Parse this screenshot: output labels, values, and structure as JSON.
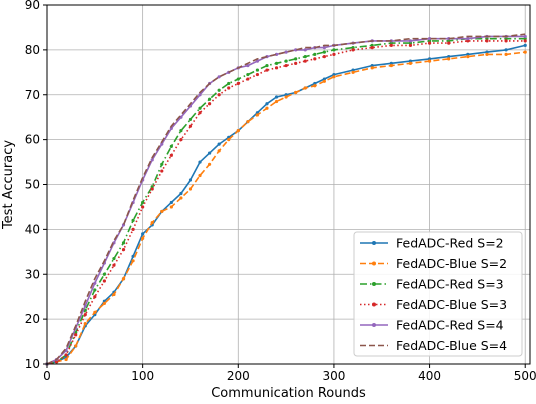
{
  "chart_data": {
    "type": "line",
    "title": "",
    "xlabel": "Communication Rounds",
    "ylabel": "Test Accuracy",
    "xlim": [
      0,
      505
    ],
    "ylim": [
      10,
      90
    ],
    "xticks": [
      0,
      100,
      200,
      300,
      400,
      500
    ],
    "yticks": [
      10,
      20,
      30,
      40,
      50,
      60,
      70,
      80,
      90
    ],
    "grid": true,
    "legend_position": "lower-right",
    "series": [
      {
        "name": "FedADC-Red S=2",
        "color": "#1f77b4",
        "linestyle": "solid",
        "marker": "dot",
        "x": [
          0,
          10,
          20,
          30,
          40,
          50,
          60,
          70,
          80,
          90,
          100,
          110,
          120,
          130,
          140,
          150,
          160,
          170,
          180,
          190,
          200,
          210,
          220,
          230,
          240,
          250,
          260,
          270,
          280,
          290,
          300,
          320,
          340,
          360,
          380,
          400,
          420,
          440,
          460,
          480,
          500
        ],
        "y": [
          10,
          10.5,
          11.5,
          14,
          18.5,
          21,
          24,
          26,
          29,
          34,
          39,
          41,
          44,
          46,
          48,
          51,
          55,
          57,
          59,
          60.5,
          62,
          64,
          66,
          68,
          69.5,
          70,
          70.5,
          71.5,
          72.5,
          73.5,
          74.5,
          75.5,
          76.5,
          77,
          77.5,
          78,
          78.5,
          79,
          79.5,
          80,
          81
        ]
      },
      {
        "name": "FedADC-Blue S=2",
        "color": "#ff7f0e",
        "linestyle": "dashed",
        "marker": "dot",
        "x": [
          0,
          10,
          20,
          30,
          40,
          50,
          60,
          70,
          80,
          90,
          100,
          110,
          120,
          130,
          140,
          150,
          160,
          170,
          180,
          190,
          200,
          210,
          220,
          230,
          240,
          250,
          260,
          270,
          280,
          290,
          300,
          320,
          340,
          360,
          380,
          400,
          420,
          440,
          460,
          480,
          500
        ],
        "y": [
          10,
          10.5,
          11,
          14,
          19,
          21.5,
          23.5,
          25.5,
          29,
          33,
          38,
          41.5,
          44,
          45,
          47,
          49,
          52,
          54.5,
          57.5,
          60,
          62,
          64,
          65.5,
          67,
          68.5,
          69.5,
          70.5,
          71.5,
          72,
          73,
          74,
          75,
          76,
          76.5,
          77,
          77.5,
          78,
          78.5,
          79,
          79,
          79.5
        ]
      },
      {
        "name": "FedADC-Red S=3",
        "color": "#2ca02c",
        "linestyle": "dashdot",
        "marker": "dot",
        "x": [
          0,
          10,
          20,
          30,
          40,
          50,
          60,
          70,
          80,
          90,
          100,
          110,
          120,
          130,
          140,
          150,
          160,
          170,
          180,
          190,
          200,
          210,
          220,
          230,
          240,
          250,
          260,
          270,
          280,
          290,
          300,
          320,
          340,
          360,
          380,
          400,
          420,
          440,
          460,
          480,
          500
        ],
        "y": [
          10,
          10.5,
          12,
          17,
          22,
          26.5,
          30,
          33.5,
          37,
          42,
          46,
          49.5,
          54.5,
          58.5,
          62,
          64.5,
          67,
          69,
          71,
          72.5,
          73.5,
          74.5,
          75.5,
          76.5,
          77,
          77.5,
          78,
          78.5,
          79,
          79.5,
          80,
          80.5,
          81,
          81.5,
          81.5,
          82,
          82,
          82.5,
          82.5,
          82.5,
          82.5
        ]
      },
      {
        "name": "FedADC-Blue S=3",
        "color": "#d62728",
        "linestyle": "dotted",
        "marker": "dot",
        "x": [
          0,
          10,
          20,
          30,
          40,
          50,
          60,
          70,
          80,
          90,
          100,
          110,
          120,
          130,
          140,
          150,
          160,
          170,
          180,
          190,
          200,
          210,
          220,
          230,
          240,
          250,
          260,
          270,
          280,
          290,
          300,
          320,
          340,
          360,
          380,
          400,
          420,
          440,
          460,
          480,
          500
        ],
        "y": [
          10,
          10.5,
          12,
          16.5,
          21,
          25,
          28.5,
          32,
          35.5,
          40,
          45,
          49,
          53,
          56.5,
          60,
          63,
          66,
          68,
          70,
          71.5,
          72.5,
          73.5,
          74.5,
          75.5,
          76,
          76.5,
          77,
          77.5,
          78,
          78.5,
          79,
          80,
          80.5,
          81,
          81,
          81.5,
          81.5,
          82,
          82,
          82,
          82
        ]
      },
      {
        "name": "FedADC-Red S=4",
        "color": "#9467bd",
        "linestyle": "solid",
        "marker": "dot",
        "x": [
          0,
          10,
          20,
          30,
          40,
          50,
          60,
          70,
          80,
          90,
          100,
          110,
          120,
          130,
          140,
          150,
          160,
          170,
          180,
          190,
          200,
          210,
          220,
          230,
          240,
          250,
          260,
          270,
          280,
          290,
          300,
          320,
          340,
          360,
          380,
          400,
          420,
          440,
          460,
          480,
          500
        ],
        "y": [
          10,
          11,
          13,
          18,
          23,
          28,
          32.5,
          37,
          41,
          46,
          51,
          55.5,
          59,
          62.5,
          65,
          67.5,
          70,
          72.5,
          74,
          75,
          76,
          76.5,
          77.5,
          78.5,
          79,
          79.5,
          80,
          80,
          80.5,
          80.5,
          81,
          81.5,
          82,
          82,
          82,
          82.5,
          82.5,
          82.5,
          83,
          83,
          83
        ]
      },
      {
        "name": "FedADC-Blue S=4",
        "color": "#8c564b",
        "linestyle": "dashed",
        "marker": "none",
        "x": [
          0,
          10,
          20,
          30,
          40,
          50,
          60,
          70,
          80,
          90,
          100,
          110,
          120,
          130,
          140,
          150,
          160,
          170,
          180,
          190,
          200,
          210,
          220,
          230,
          240,
          250,
          260,
          270,
          280,
          290,
          300,
          320,
          340,
          360,
          380,
          400,
          420,
          440,
          460,
          480,
          500
        ],
        "y": [
          10,
          11,
          13.5,
          18.5,
          24,
          29,
          33,
          37.5,
          41,
          46.5,
          51.5,
          56,
          59.5,
          63,
          65.5,
          68,
          70.5,
          72.5,
          74,
          75,
          76,
          77,
          78,
          78.5,
          79,
          79.5,
          80,
          80.5,
          80.5,
          81,
          81,
          81.5,
          82,
          82,
          82.5,
          82.5,
          82.5,
          83,
          83,
          83,
          83.5
        ]
      }
    ]
  }
}
